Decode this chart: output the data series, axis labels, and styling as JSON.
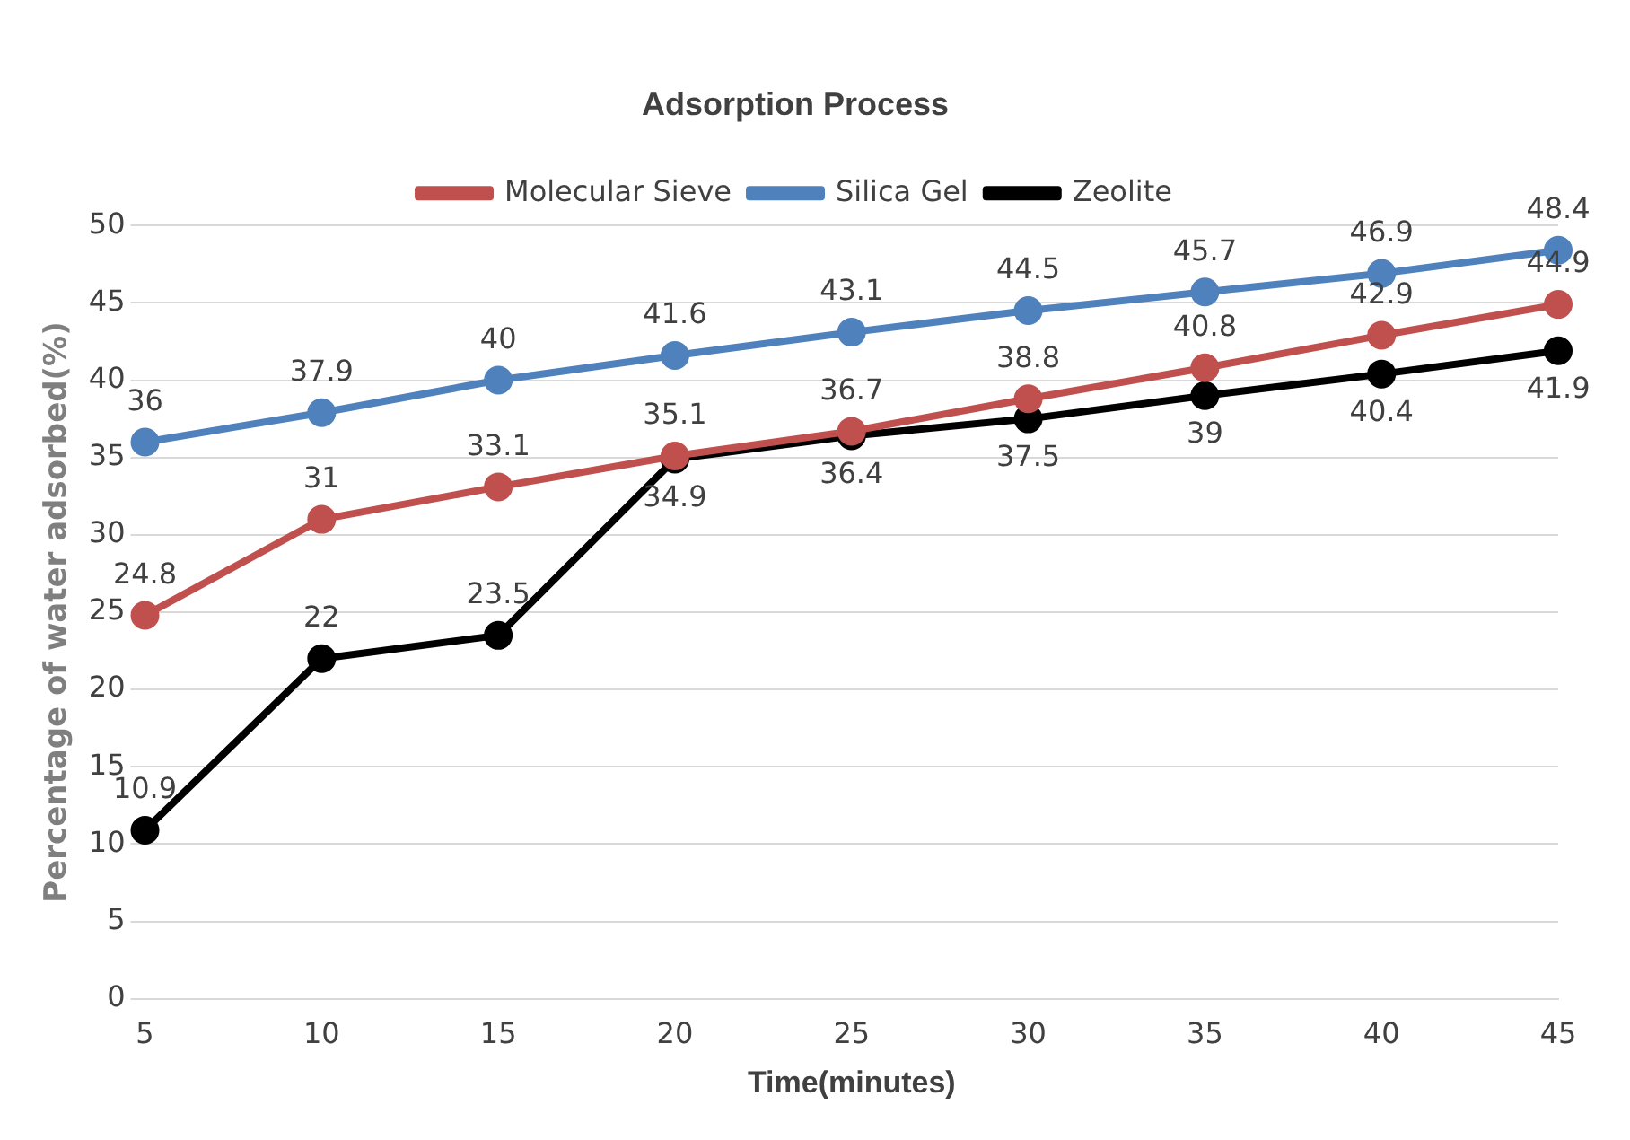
{
  "chart_data": {
    "type": "line",
    "title": "Adsorption Process",
    "xlabel": "Time(minutes)",
    "ylabel": "Percentage of water adsorbed(%)",
    "categories": [
      "5",
      "10",
      "15",
      "20",
      "25",
      "30",
      "35",
      "40",
      "45"
    ],
    "series": [
      {
        "name": "Molecular Sieve",
        "color": "#c0504d",
        "values": [
          24.8,
          31,
          33.1,
          35.1,
          36.7,
          38.8,
          40.8,
          42.9,
          44.9
        ]
      },
      {
        "name": "Silica Gel",
        "color": "#4f81bd",
        "values": [
          36,
          37.9,
          40,
          41.6,
          43.1,
          44.5,
          45.7,
          46.9,
          48.4
        ]
      },
      {
        "name": "Zeolite",
        "color": "#000000",
        "values": [
          10.9,
          22,
          23.5,
          34.9,
          36.4,
          37.5,
          39,
          40.4,
          41.9
        ]
      }
    ],
    "ylim": [
      0,
      50
    ],
    "yticks": [
      0,
      5,
      10,
      15,
      20,
      25,
      30,
      35,
      40,
      45,
      50
    ],
    "grid": "y",
    "legend": "top",
    "marker": "circle",
    "line_style": "solid",
    "data_labels": true
  }
}
